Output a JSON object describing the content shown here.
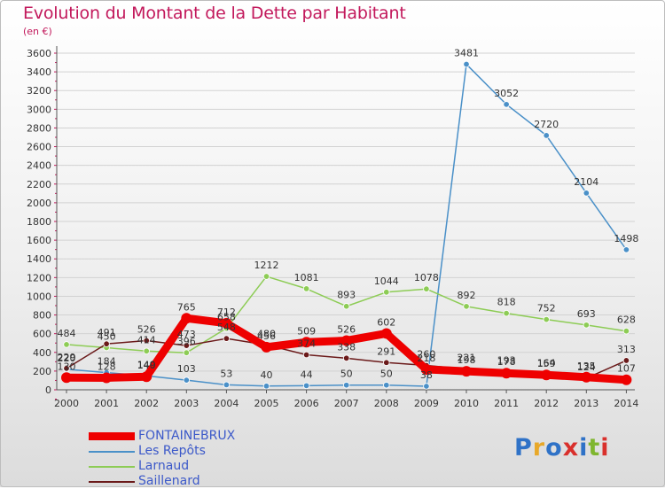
{
  "title": "Evolution du Montant de la Dette par Habitant",
  "subtitle": "(en €)",
  "logo": {
    "text": "Proxiti",
    "colors": [
      "#2f72c7",
      "#e8a82a",
      "#2f72c7",
      "#d9302c",
      "#2f72c7",
      "#7fb62e",
      "#d9302c"
    ]
  },
  "chart_data": {
    "type": "line",
    "title": "Evolution du Montant de la Dette par Habitant",
    "subtitle": "(en €)",
    "xlabel": "",
    "ylabel": "",
    "categories": [
      "2000",
      "2001",
      "2002",
      "2003",
      "2004",
      "2005",
      "2006",
      "2007",
      "2008",
      "2009",
      "2010",
      "2011",
      "2012",
      "2013",
      "2014"
    ],
    "yticks": [
      0,
      200,
      400,
      600,
      800,
      1000,
      1200,
      1400,
      1600,
      1800,
      2000,
      2200,
      2400,
      2600,
      2800,
      3000,
      3200,
      3400,
      3600
    ],
    "ylim": [
      0,
      3600
    ],
    "grid": "horizontal",
    "legend_position": "bottom-left",
    "series": [
      {
        "name": "FONTAINEBRUX",
        "color": "#ee0000",
        "values": [
          130,
          128,
          140,
          765,
          712,
          456,
          509,
          526,
          602,
          218,
          198,
          178,
          159,
          135,
          107
        ]
      },
      {
        "name": "Les Repôts",
        "color": "#4a90c8",
        "values": [
          220,
          184,
          149,
          103,
          53,
          40,
          44,
          50,
          50,
          38,
          3481,
          3052,
          2720,
          2104,
          1498
        ]
      },
      {
        "name": "Larnaud",
        "color": "#8dcc55",
        "values": [
          484,
          450,
          414,
          396,
          658,
          1212,
          1081,
          893,
          1044,
          1078,
          892,
          818,
          752,
          693,
          628
        ]
      },
      {
        "name": "Saillenard",
        "color": "#6b1a1a",
        "values": [
          229,
          491,
          526,
          473,
          548,
          480,
          374,
          338,
          291,
          260,
          221,
          193,
          164,
          124,
          313
        ]
      }
    ]
  },
  "legend": [
    {
      "name": "FONTAINEBRUX",
      "color": "#ee0000",
      "width": 9
    },
    {
      "name": "Les Repôts",
      "color": "#4a90c8",
      "width": 2
    },
    {
      "name": "Larnaud",
      "color": "#8dcc55",
      "width": 2
    },
    {
      "name": "Saillenard",
      "color": "#6b1a1a",
      "width": 2
    }
  ]
}
